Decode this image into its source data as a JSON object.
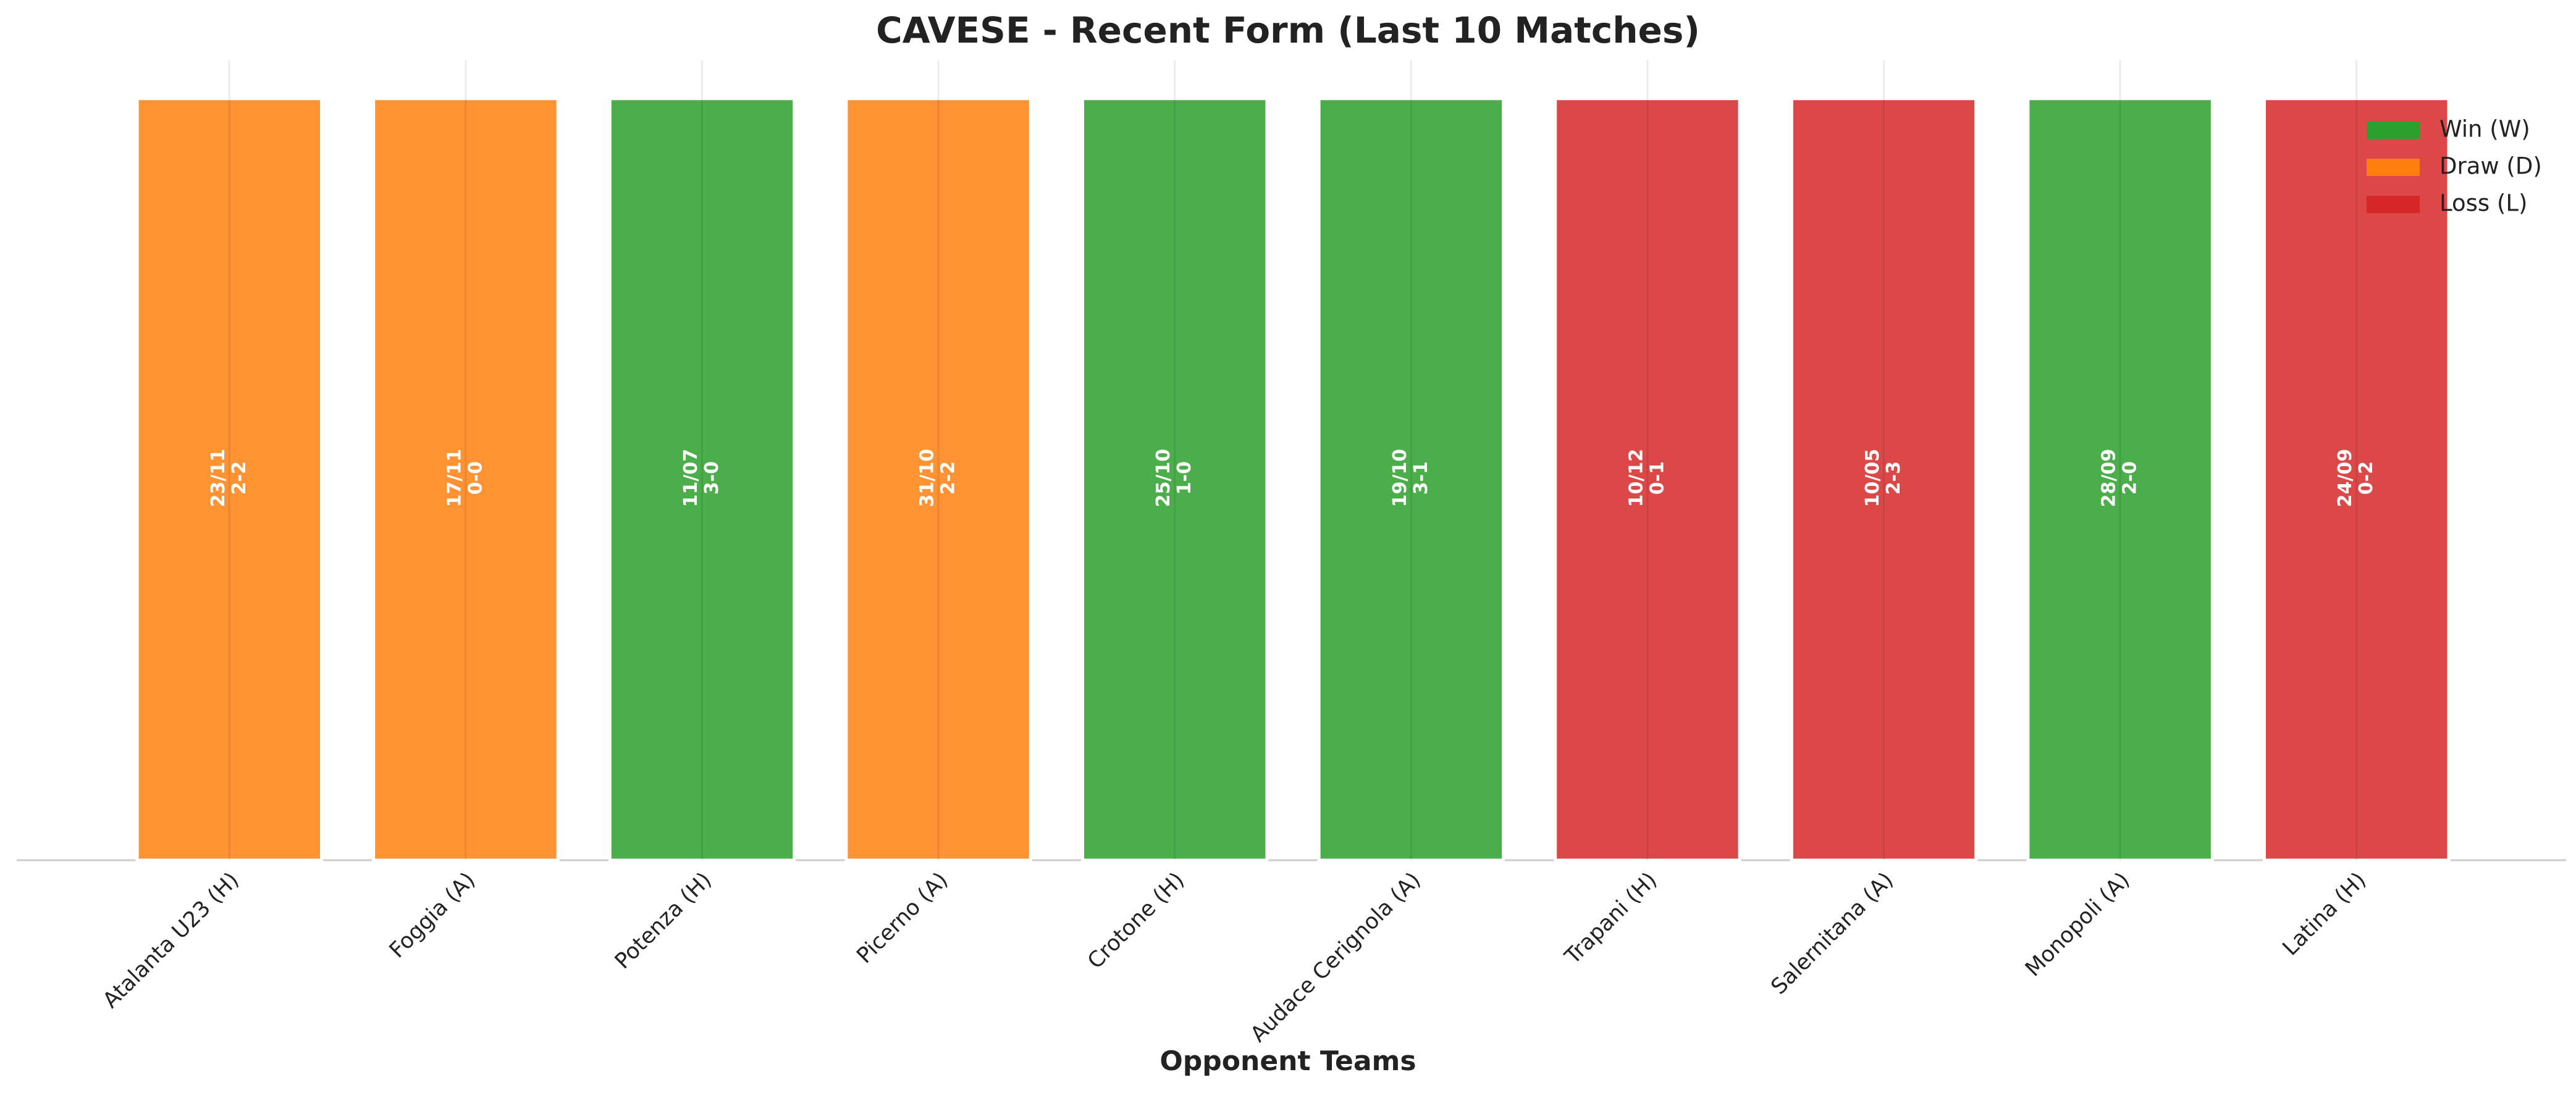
{
  "chart_data": {
    "type": "bar",
    "title": "CAVESE - Recent Form (Last 10 Matches)",
    "x_label": "Opponent Teams",
    "categories": [
      "Atalanta U23 (H)",
      "Foggia (A)",
      "Potenza (H)",
      "Picerno (A)",
      "Crotone (H)",
      "Audace Cerignola (A)",
      "Trapani (H)",
      "Salernitana (A)",
      "Monopoli (A)",
      "Latina (H)"
    ],
    "values": [
      1,
      1,
      1,
      1,
      1,
      1,
      1,
      1,
      1,
      1
    ],
    "dates": [
      "23/11",
      "17/11",
      "11/07",
      "31/10",
      "25/10",
      "19/10",
      "10/12",
      "10/05",
      "28/09",
      "24/09"
    ],
    "scores": [
      "2-2",
      "0-0",
      "3-0",
      "2-2",
      "1-0",
      "3-1",
      "0-1",
      "2-3",
      "2-0",
      "0-2"
    ],
    "colors": [
      "#ff7f0e",
      "#ff7f0e",
      "#2ca02c",
      "#ff7f0e",
      "#2ca02c",
      "#2ca02c",
      "#d62728",
      "#d62728",
      "#2ca02c",
      "#d62728"
    ],
    "legend": [
      {
        "name": "Win (W)",
        "color": "#2ca02c"
      },
      {
        "name": "Draw (D)",
        "color": "#ff7f0e"
      },
      {
        "name": "Loss (L)",
        "color": "#d62728"
      }
    ],
    "legend_position": "upper right",
    "ylim": [
      0,
      1.05
    ],
    "xgrid": true
  }
}
